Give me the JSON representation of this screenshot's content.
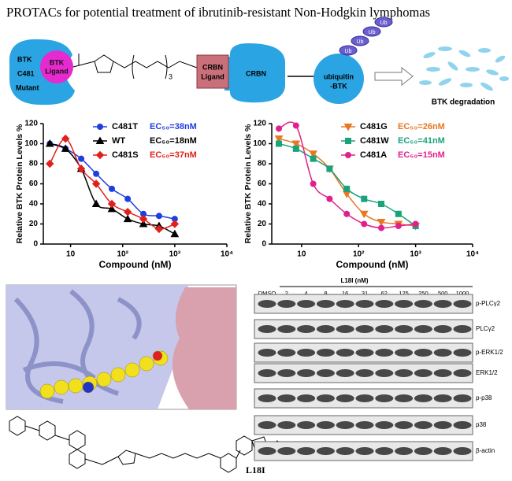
{
  "title": "PROTACs for potential treatment of ibrutinib-resistant Non-Hodgkin lymphomas",
  "diagram": {
    "btk": [
      "BTK",
      "C481",
      "Mutant"
    ],
    "btk_ligand": [
      "BTK",
      "Ligand"
    ],
    "linker_repeat": "3",
    "crbn_ligand": [
      "CRBN",
      "Ligand"
    ],
    "crbn": "CRBN",
    "ubiquitin_btk": [
      "ubiquitin",
      "-BTK"
    ],
    "ub": [
      "Ub",
      "Ub",
      "Ub",
      "Ub"
    ],
    "degradation": "BTK degradation"
  },
  "chart_data": [
    {
      "type": "scatter",
      "x_label": "Compound (nM)",
      "y_label": "Relative BTK Protein Levels %",
      "x_scale": "log",
      "xlim": [
        3,
        10000
      ],
      "xticks": [
        {
          "value": 10,
          "label": "10"
        },
        {
          "value": 100,
          "label": "10²"
        },
        {
          "value": 1000,
          "label": "10³"
        },
        {
          "value": 10000,
          "label": "10⁴"
        }
      ],
      "ylim": [
        0,
        120
      ],
      "yticks": [
        0,
        20,
        40,
        60,
        80,
        100,
        120
      ],
      "grid": false,
      "legend": "top-right",
      "x": [
        4,
        8,
        16,
        31,
        62,
        125,
        250,
        500,
        1000
      ],
      "series": [
        {
          "name": "C481T",
          "ec50_label": "EC₅₀=38nM",
          "color": "#1f3ee0",
          "marker": "circle",
          "values": [
            100,
            95,
            85,
            70,
            55,
            45,
            30,
            28,
            25
          ]
        },
        {
          "name": "WT",
          "ec50_label": "EC₅₀=18nM",
          "color": "#000000",
          "marker": "triangle",
          "values": [
            100,
            95,
            75,
            40,
            35,
            25,
            20,
            18,
            10
          ]
        },
        {
          "name": "C481S",
          "ec50_label": "EC₅₀=37nM",
          "color": "#e0201b",
          "marker": "diamond",
          "values": [
            80,
            105,
            75,
            60,
            40,
            32,
            25,
            15,
            20
          ]
        }
      ]
    },
    {
      "type": "scatter",
      "x_label": "Compound (nM)",
      "y_label": "Relative BTK Protein Levels %",
      "x_scale": "log",
      "xlim": [
        3,
        10000
      ],
      "xticks": [
        {
          "value": 10,
          "label": "10"
        },
        {
          "value": 100,
          "label": "10²"
        },
        {
          "value": 1000,
          "label": "10³"
        },
        {
          "value": 10000,
          "label": "10⁴"
        }
      ],
      "ylim": [
        0,
        120
      ],
      "yticks": [
        0,
        20,
        40,
        60,
        80,
        100,
        120
      ],
      "grid": false,
      "legend": "top-right",
      "x": [
        4,
        8,
        16,
        31,
        62,
        125,
        250,
        500,
        1000
      ],
      "series": [
        {
          "name": "C481G",
          "ec50_label": "EC₅₀=26nM",
          "color": "#e87722",
          "marker": "triangle-down",
          "values": [
            105,
            100,
            90,
            75,
            50,
            30,
            22,
            20,
            18
          ]
        },
        {
          "name": "C481W",
          "ec50_label": "EC₅₀=41nM",
          "color": "#1aa37a",
          "marker": "square",
          "values": [
            100,
            95,
            85,
            75,
            55,
            45,
            40,
            30,
            18
          ]
        },
        {
          "name": "C481A",
          "ec50_label": "EC₅₀=15nM",
          "color": "#e0208c",
          "marker": "circle",
          "values": [
            115,
            118,
            60,
            45,
            30,
            20,
            16,
            18,
            20
          ]
        }
      ]
    }
  ],
  "compound_label": "L18I",
  "blot": {
    "title": "L18I (nM)",
    "lanes": [
      "DMSO",
      "2",
      "4",
      "8",
      "16",
      "31",
      "62",
      "125",
      "250",
      "500",
      "1000"
    ],
    "rows": [
      "p-PLCγ2",
      "PLCγ2",
      "p-ERK1/2",
      "ERK1/2",
      "p-p38",
      "p38",
      "β-actin"
    ]
  }
}
